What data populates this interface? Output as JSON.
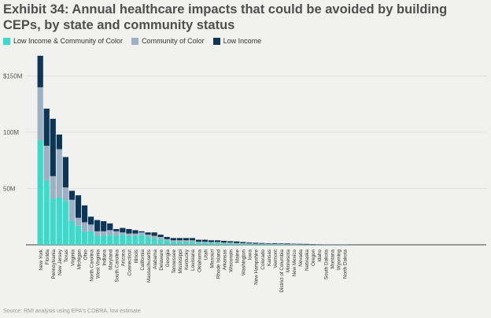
{
  "title": "Exhibit 34: Annual healthcare impacts that could be avoided by building CEPs, by state and community status",
  "source": "Source: RMI analysis using EPA's COBRA, low estimate",
  "colors": {
    "li_coc": "#45d6c8",
    "coc": "#9eb1c4",
    "li": "#0f3553",
    "grid": "#d9d9d9",
    "axis": "#444444"
  },
  "chart_data": {
    "type": "bar",
    "stacked": true,
    "ylim": [
      0,
      170
    ],
    "yticks": [
      {
        "value": 50,
        "label": "50M"
      },
      {
        "value": 100,
        "label": "100M"
      },
      {
        "value": 150,
        "label": "$150M"
      }
    ],
    "categories": [
      "New York",
      "Florida",
      "Pennsylvania",
      "New Jersey",
      "Texas",
      "Virginia",
      "Michigan",
      "Ohio",
      "North Carolina",
      "West Virginia",
      "Indiana",
      "Maryland",
      "South Carolina",
      "Arizona",
      "Connecticut",
      "Illinois",
      "California",
      "Massachusetts",
      "Alabama",
      "Delaware",
      "Georgia",
      "Tennessee",
      "Mississippi",
      "Kentucky",
      "Louisiana",
      "Oklahoma",
      "Utah",
      "Missouri",
      "Rhode Island",
      "Arkansas",
      "Wisconsin",
      "Maine",
      "Washington",
      "Iowa",
      "New Hampshire",
      "Colorado",
      "Kansas",
      "Vermont",
      "District of Columbia",
      "Minnesota",
      "New Mexico",
      "Nevada",
      "Nebraska",
      "Oregon",
      "Idaho",
      "South Dakota",
      "Montana",
      "Wyoming",
      "North Dakota"
    ],
    "series": [
      {
        "name": "Low Income & Community of Color",
        "values": [
          93,
          57,
          41,
          42,
          39,
          21,
          17,
          12,
          12,
          8,
          8,
          9,
          8,
          9,
          8,
          8,
          9,
          7,
          6,
          5,
          4,
          3,
          3,
          3,
          3,
          2.2,
          2.2,
          2,
          2,
          1.5,
          1.5,
          1.2,
          1,
          0.8,
          0.7,
          0.7,
          0.6,
          0.5,
          0.5,
          0.4,
          0.4,
          0.3,
          0.3,
          0.2,
          0.1,
          0.1,
          0.1,
          0.1,
          0.1
        ]
      },
      {
        "name": "Community of Color",
        "values": [
          47,
          31,
          20,
          43,
          12,
          19,
          7,
          8,
          6,
          4,
          4,
          4,
          4,
          2,
          2,
          2,
          2,
          2,
          2,
          2,
          1,
          1,
          1,
          1,
          1,
          0.5,
          0.5,
          0.5,
          0.5,
          0.5,
          0.5,
          0.3,
          0.5,
          0.4,
          0.3,
          0.3,
          0.3,
          0.3,
          0.2,
          0.2,
          0.2,
          0.2,
          0.1,
          0.1,
          0.1,
          0.1,
          0.05,
          0.05,
          0.05
        ]
      },
      {
        "name": "Low Income",
        "values": [
          28,
          33,
          51,
          13,
          27,
          8,
          20,
          15,
          7,
          10,
          9,
          6,
          2,
          4,
          4,
          3,
          1,
          2,
          3,
          2,
          2,
          2,
          2,
          2,
          2,
          1.8,
          1.8,
          1.5,
          1.5,
          1.5,
          1.2,
          1.5,
          1,
          0.8,
          0.8,
          0.6,
          0.5,
          0.6,
          0.5,
          0.6,
          0.4,
          0.4,
          0.4,
          0.3,
          0.2,
          0.1,
          0.1,
          0.1,
          0.05
        ]
      }
    ]
  }
}
